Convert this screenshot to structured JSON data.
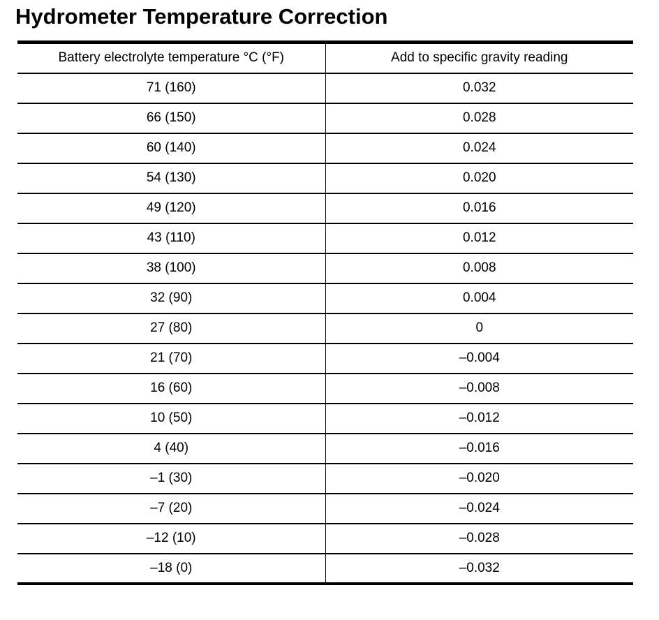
{
  "page": {
    "title": "Hydrometer Temperature Correction"
  },
  "colors": {
    "text": "#000000",
    "background": "#ffffff",
    "border": "#000000"
  },
  "table": {
    "columns": [
      "Battery electrolyte temperature °C (°F)",
      "Add to specific gravity reading"
    ],
    "rows": [
      {
        "temperature": "71 (160)",
        "correction": "0.032"
      },
      {
        "temperature": "66 (150)",
        "correction": "0.028"
      },
      {
        "temperature": "60 (140)",
        "correction": "0.024"
      },
      {
        "temperature": "54 (130)",
        "correction": "0.020"
      },
      {
        "temperature": "49 (120)",
        "correction": "0.016"
      },
      {
        "temperature": "43 (110)",
        "correction": "0.012"
      },
      {
        "temperature": "38 (100)",
        "correction": "0.008"
      },
      {
        "temperature": "32 (90)",
        "correction": "0.004"
      },
      {
        "temperature": "27 (80)",
        "correction": "0"
      },
      {
        "temperature": "21 (70)",
        "correction": "–0.004"
      },
      {
        "temperature": "16 (60)",
        "correction": "–0.008"
      },
      {
        "temperature": "10 (50)",
        "correction": "–0.012"
      },
      {
        "temperature": "4 (40)",
        "correction": "–0.016"
      },
      {
        "temperature": "–1 (30)",
        "correction": "–0.020"
      },
      {
        "temperature": "–7 (20)",
        "correction": "–0.024"
      },
      {
        "temperature": "–12 (10)",
        "correction": "–0.028"
      },
      {
        "temperature": "–18 (0)",
        "correction": "–0.032"
      }
    ]
  }
}
